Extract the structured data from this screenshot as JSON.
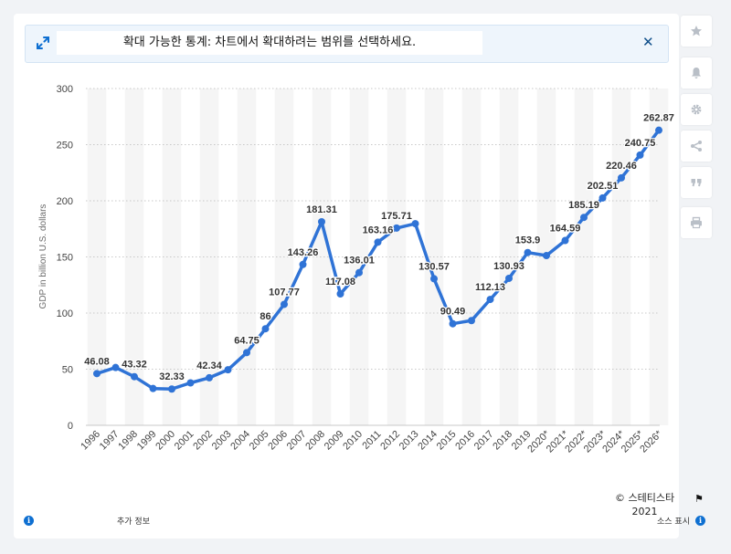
{
  "banner": {
    "text": "확대 가능한 통계: 차트에서 확대하려는 범위를 선택하세요."
  },
  "footer": {
    "credit_line1": "© 스테티스타",
    "credit_line2": "2021",
    "more_info": "추가 정보",
    "show_source": "소스 표시"
  },
  "sidebar": {
    "icons": [
      "star-icon",
      "bell-icon",
      "gear-icon",
      "share-icon",
      "quote-icon",
      "print-icon"
    ]
  },
  "colors": {
    "line": "#2f73d6",
    "axis_text": "#444444",
    "grid": "#c8c8c8",
    "band": "#f5f5f5",
    "background": "#f1f3f6",
    "info": "#0e6fd1"
  },
  "chart_data": {
    "type": "line",
    "title": "",
    "xlabel": "",
    "ylabel": "GDP in billion U.S. dollars",
    "ylim": [
      0,
      300
    ],
    "yticks": [
      0,
      50,
      100,
      150,
      200,
      250,
      300
    ],
    "grid": true,
    "categories": [
      "1996",
      "1997",
      "1998",
      "1999",
      "2000",
      "2001",
      "2002",
      "2003",
      "2004",
      "2005",
      "2006",
      "2007",
      "2008",
      "2009",
      "2010",
      "2011",
      "2012",
      "2013",
      "2014",
      "2015",
      "2016",
      "2017",
      "2018",
      "2019",
      "2020*",
      "2021*",
      "2022*",
      "2023*",
      "2024*",
      "2025*",
      "2026*"
    ],
    "values": [
      46.08,
      51.5,
      43.32,
      32.8,
      32.33,
      37.8,
      42.34,
      49.5,
      64.75,
      86,
      107.77,
      143.26,
      181.31,
      117.08,
      136.01,
      163.16,
      175.71,
      179.6,
      130.57,
      90.49,
      93.3,
      112.13,
      130.93,
      153.9,
      151.2,
      164.59,
      185.19,
      202.51,
      220.46,
      240.75,
      262.87
    ],
    "data_labels": [
      "46.08",
      null,
      "43.32",
      null,
      "32.33",
      null,
      "42.34",
      null,
      "64.75",
      "86",
      "107.77",
      "143.26",
      "181.31",
      "117.08",
      "136.01",
      "163.16",
      "175.71",
      null,
      "130.57",
      "90.49",
      null,
      "112.13",
      "130.93",
      "153.9",
      null,
      "164.59",
      "185.19",
      "202.51",
      "220.46",
      "240.75",
      "262.87"
    ]
  }
}
